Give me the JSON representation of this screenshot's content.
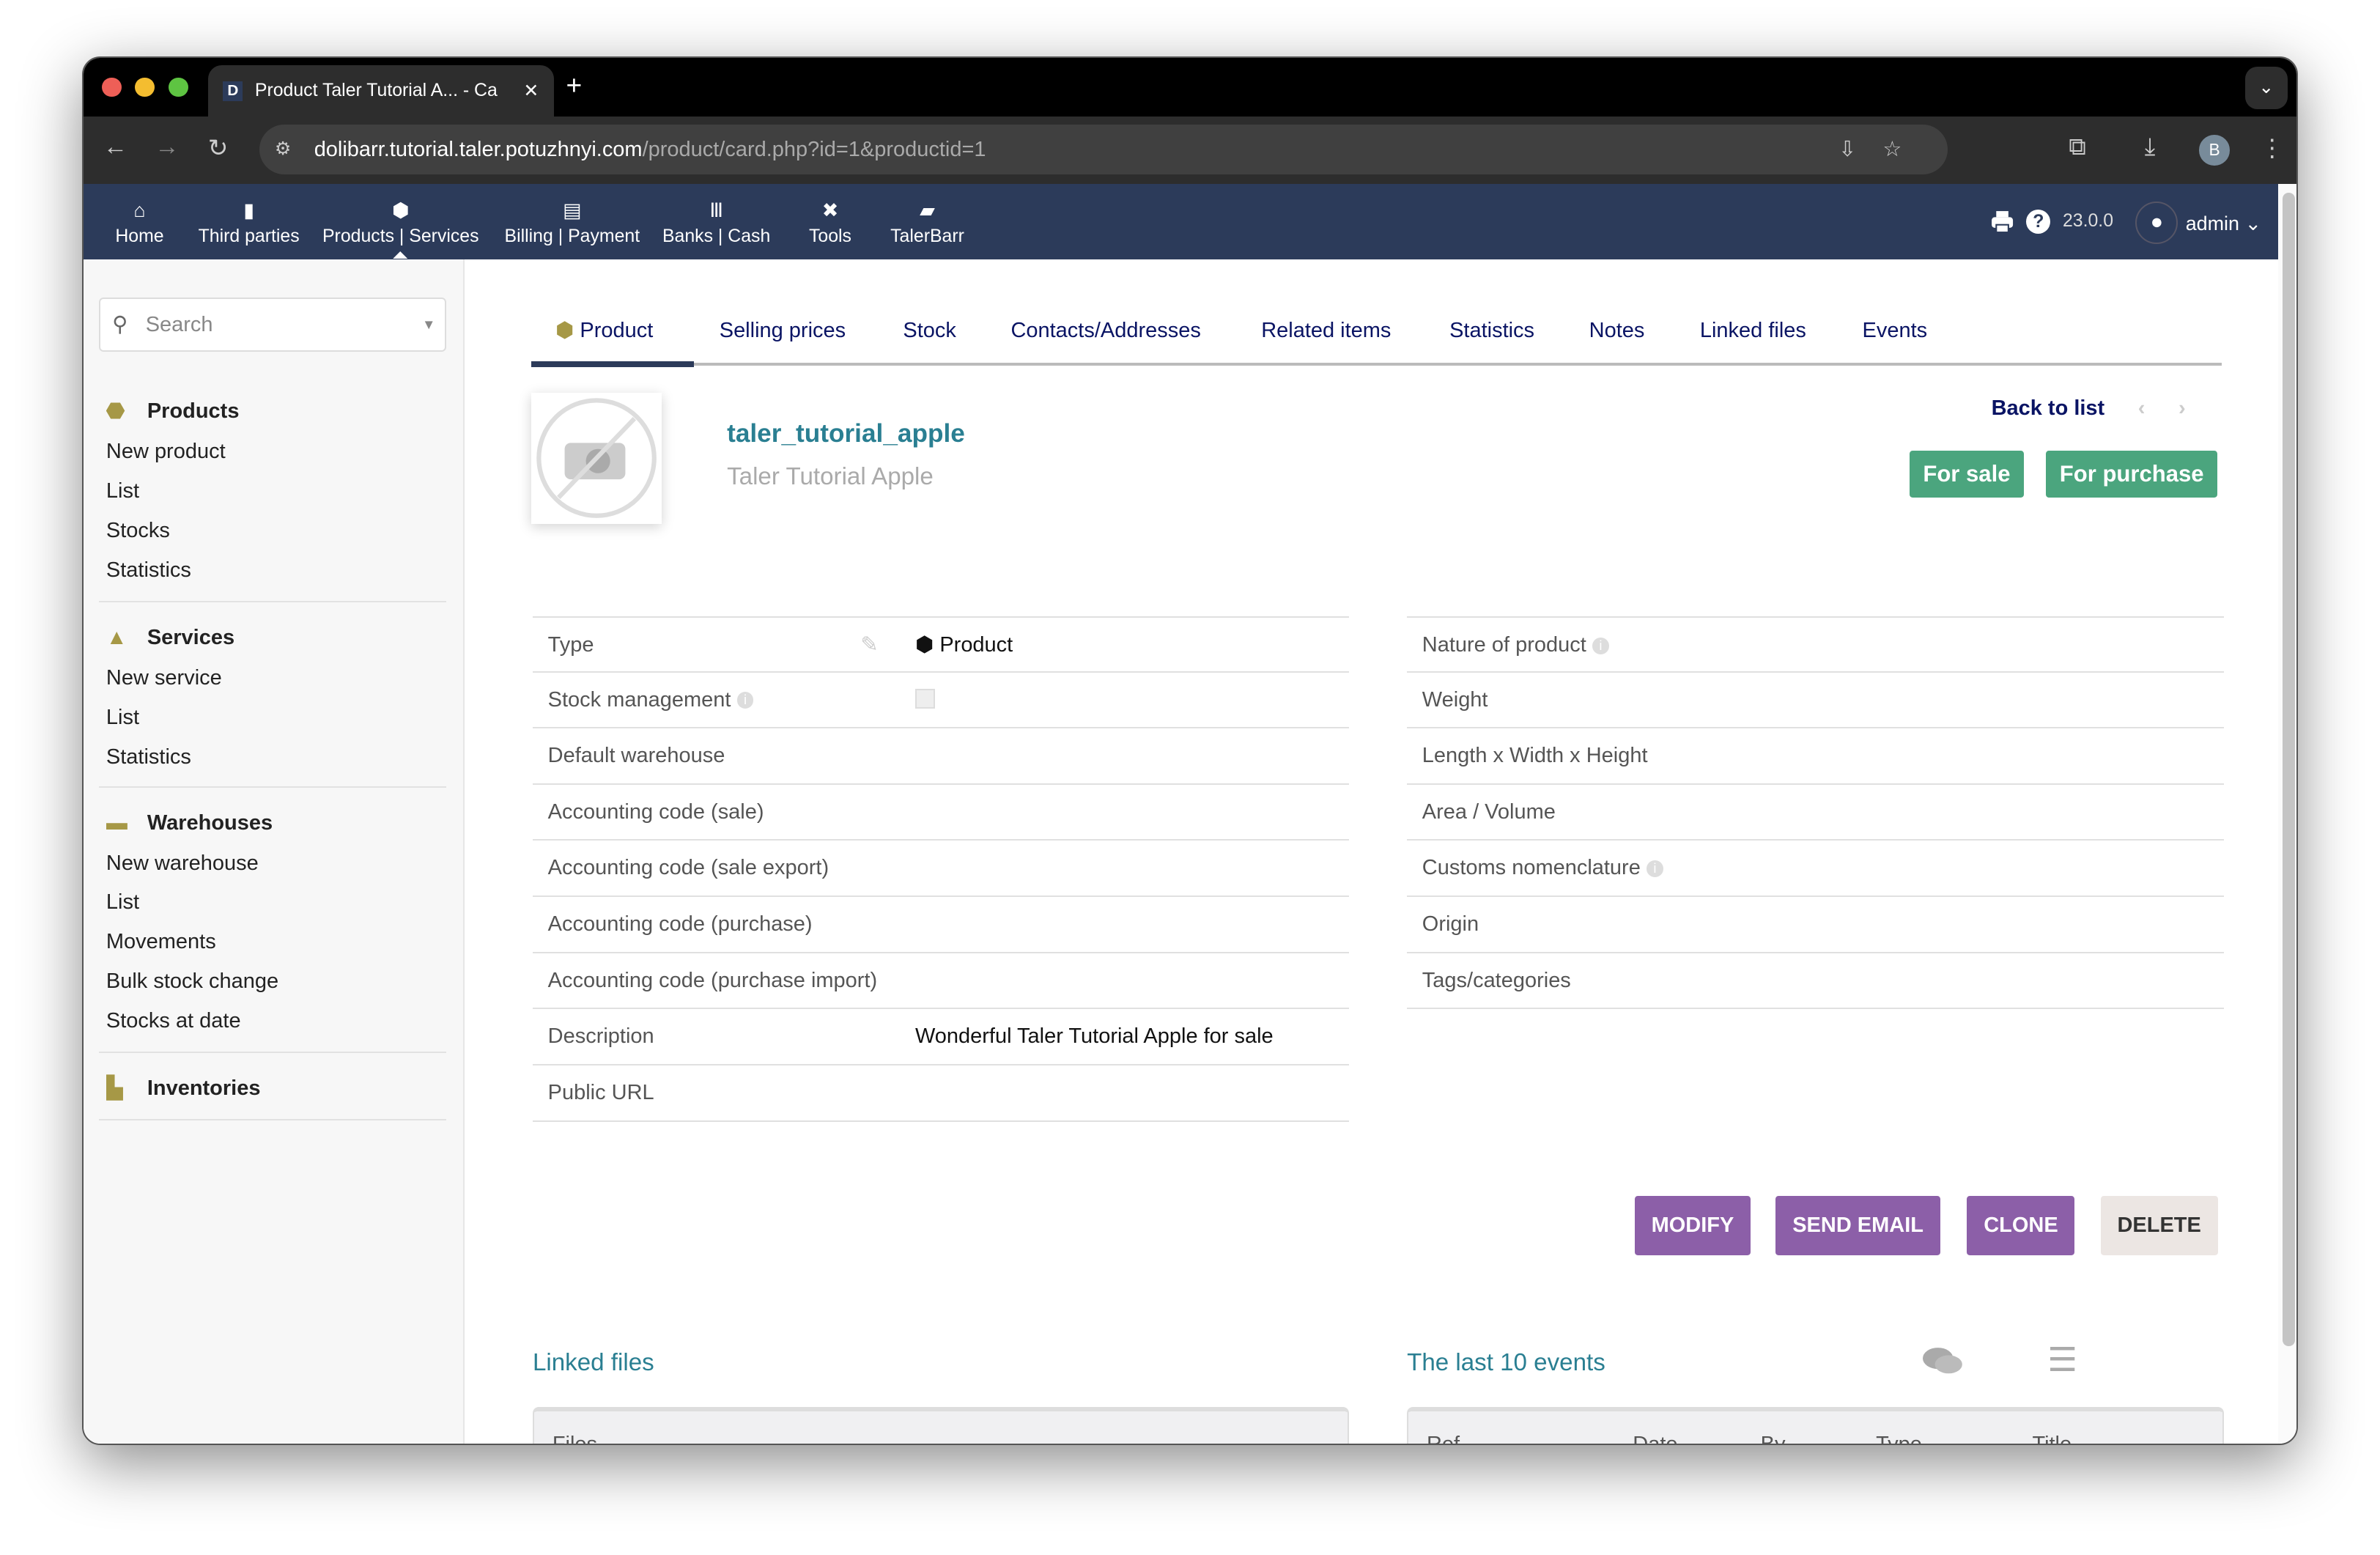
{
  "browser": {
    "tab_title": "Product Taler Tutorial A... - Ca",
    "url_host": "dolibarr.tutorial.taler.potuzhnyi.com",
    "url_path": "/product/card.php?id=1&productid=1",
    "profile": "B"
  },
  "nav": {
    "items": [
      {
        "label": "Home",
        "icon": "home-icon"
      },
      {
        "label": "Third parties",
        "icon": "building-icon"
      },
      {
        "label": "Products | Services",
        "icon": "cube-icon"
      },
      {
        "label": "Billing | Payment",
        "icon": "invoice-icon"
      },
      {
        "label": "Banks | Cash",
        "icon": "bank-icon"
      },
      {
        "label": "Tools",
        "icon": "tools-icon"
      },
      {
        "label": "TalerBarr",
        "icon": "note-icon"
      }
    ],
    "version": "23.0.0",
    "user": "admin"
  },
  "sidebar": {
    "search_placeholder": "Search",
    "groups": [
      {
        "title": "Products",
        "items": [
          "New product",
          "List",
          "Stocks",
          "Statistics"
        ]
      },
      {
        "title": "Services",
        "items": [
          "New service",
          "List",
          "Statistics"
        ]
      },
      {
        "title": "Warehouses",
        "items": [
          "New warehouse",
          "List",
          "Movements",
          "Bulk stock change",
          "Stocks at date"
        ]
      },
      {
        "title": "Inventories",
        "items": []
      }
    ]
  },
  "tabs": [
    "Product",
    "Selling prices",
    "Stock",
    "Contacts/Addresses",
    "Related items",
    "Statistics",
    "Notes",
    "Linked files",
    "Events"
  ],
  "product": {
    "ref": "taler_tutorial_apple",
    "label": "Taler Tutorial Apple",
    "back_to_list": "Back to list",
    "for_sale": "For sale",
    "for_purchase": "For purchase"
  },
  "left_fields": [
    {
      "k": "Type",
      "v": "Product"
    },
    {
      "k": "Stock management",
      "v": ""
    },
    {
      "k": "Default warehouse",
      "v": ""
    },
    {
      "k": "Accounting code (sale)",
      "v": ""
    },
    {
      "k": "Accounting code (sale export)",
      "v": ""
    },
    {
      "k": "Accounting code (purchase)",
      "v": ""
    },
    {
      "k": "Accounting code (purchase import)",
      "v": ""
    },
    {
      "k": "Description",
      "v": "Wonderful Taler Tutorial Apple for sale"
    },
    {
      "k": "Public URL",
      "v": ""
    }
  ],
  "right_fields": [
    {
      "k": "Nature of product"
    },
    {
      "k": "Weight"
    },
    {
      "k": "Length x Width x Height"
    },
    {
      "k": "Area / Volume"
    },
    {
      "k": "Customs nomenclature"
    },
    {
      "k": "Origin"
    },
    {
      "k": "Tags/categories"
    }
  ],
  "actions": {
    "modify": "MODIFY",
    "send_email": "SEND EMAIL",
    "clone": "CLONE",
    "delete": "DELETE"
  },
  "linked_files": {
    "title": "Linked files",
    "columns": [
      "Files"
    ]
  },
  "events": {
    "title": "The last 10 events",
    "columns": [
      "Ref.",
      "Date",
      "By",
      "Type",
      "Title"
    ]
  },
  "colors": {
    "navbar": "#2c3b5a",
    "accent_purple": "#8c5fa8",
    "status_green": "#4ba57e",
    "link_teal": "#2a7f92"
  }
}
